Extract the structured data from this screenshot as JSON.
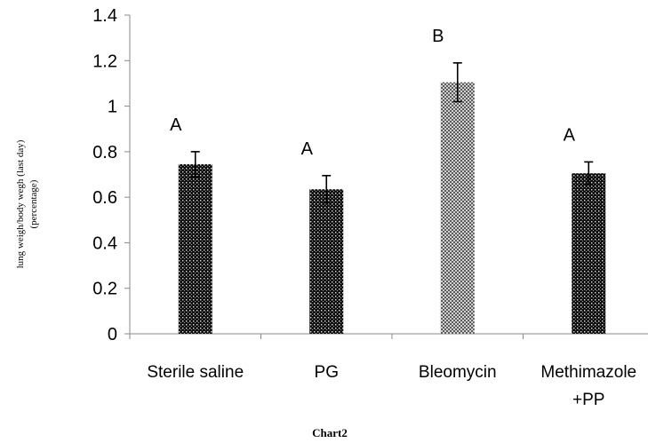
{
  "chart_data": {
    "type": "bar",
    "categories": [
      [
        "Sterile saline"
      ],
      [
        "PG"
      ],
      [
        "Bleomycin"
      ],
      [
        "Methimazole",
        "+PP"
      ]
    ],
    "values": [
      0.745,
      0.635,
      1.105,
      0.705
    ],
    "errors": [
      0.055,
      0.06,
      0.085,
      0.05
    ],
    "significance": [
      "A",
      "A",
      "B",
      "A"
    ],
    "ylabel": [
      "lung weigh/body wegh (last day)",
      "(percentage)"
    ],
    "ylim": [
      0,
      1.4
    ],
    "yticks": [
      0,
      0.2,
      0.4,
      0.6,
      0.8,
      1,
      1.2,
      1.4
    ],
    "ytick_labels": [
      "0",
      "0.2",
      "0.4",
      "0.6",
      "0.8",
      "1",
      "1.2",
      "1.4"
    ],
    "caption": "Chart2",
    "bar_colors": [
      "#1a1a1a",
      "#1a1a1a",
      "#8c8c8c",
      "#1a1a1a"
    ],
    "grid": false,
    "legend": "none"
  }
}
